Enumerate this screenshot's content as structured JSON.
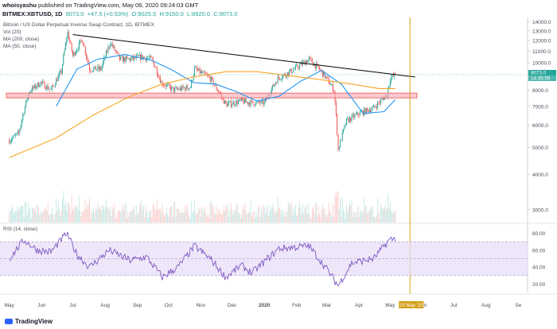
{
  "header": {
    "publisher": "whoisyashu",
    "published": "published on TradingView.com, May 06, 2020 09:24:03 GMT",
    "symbol": "BITMEX:XBTUSD, 1D",
    "last": "9073.0",
    "change": "+47.5 (+0.53%)",
    "open": "O:9025.5",
    "high": "H:9150.0",
    "low": "L:8920.0",
    "close": "C:9073.0"
  },
  "legend": {
    "title": "Bitcoin / US Dollar Perpetual Inverse Swap Contract, 1D, BITMEX",
    "vol": "Vol (20)",
    "ma200": "MA (200, close)",
    "ma50": "MA (50, close)",
    "rsi": "RSI (14, close)"
  },
  "price_labels": {
    "last": "9073.0",
    "countdown": "14:35:59"
  },
  "date_badge": "20 May '20",
  "footer": {
    "brand": "TradingView"
  },
  "colors": {
    "up": "#26a69a",
    "down": "#ef5350",
    "ma50": "#2196f3",
    "ma200": "#f5a623",
    "trendline": "#000000",
    "zone_fill": "#f8b4bd",
    "zone_border": "#ef5350",
    "rsi_line": "#7e57c2",
    "rsi_band": "#e7ddf7",
    "vline": "#d4a017"
  },
  "chart_data": [
    {
      "type": "candlestick",
      "title": "Bitcoin / US Dollar Perpetual Inverse Swap Contract, 1D, BITMEX",
      "x": [
        "May",
        "Jun",
        "Jul",
        "Aug",
        "Sep",
        "Oct",
        "Nov",
        "Dec",
        "2020",
        "Feb",
        "Mar",
        "Apr",
        "May",
        "Jun",
        "Jul",
        "Aug",
        "Se"
      ],
      "price_ticks": [
        3000,
        4000,
        5000,
        6000,
        7000,
        8000,
        9000,
        10000,
        11000,
        12000,
        13000,
        14000
      ],
      "ylim": [
        2700,
        14500
      ],
      "close_path": [
        [
          "2019-05-01",
          5300
        ],
        [
          "2019-05-10",
          5600
        ],
        [
          "2019-05-20",
          7900
        ],
        [
          "2019-05-31",
          8500
        ],
        [
          "2019-06-10",
          8000
        ],
        [
          "2019-06-20",
          9300
        ],
        [
          "2019-06-26",
          12800
        ],
        [
          "2019-07-01",
          10600
        ],
        [
          "2019-07-10",
          12100
        ],
        [
          "2019-07-17",
          9500
        ],
        [
          "2019-07-28",
          9500
        ],
        [
          "2019-08-06",
          11800
        ],
        [
          "2019-08-15",
          10300
        ],
        [
          "2019-08-25",
          10300
        ],
        [
          "2019-09-05",
          10500
        ],
        [
          "2019-09-15",
          10300
        ],
        [
          "2019-09-24",
          8500
        ],
        [
          "2019-10-06",
          8000
        ],
        [
          "2019-10-22",
          8200
        ],
        [
          "2019-10-26",
          9500
        ],
        [
          "2019-11-10",
          8800
        ],
        [
          "2019-11-25",
          7100
        ],
        [
          "2019-12-10",
          7300
        ],
        [
          "2019-12-20",
          7200
        ],
        [
          "2020-01-01",
          7200
        ],
        [
          "2020-01-14",
          8800
        ],
        [
          "2020-01-28",
          9400
        ],
        [
          "2020-02-13",
          10300
        ],
        [
          "2020-02-25",
          9300
        ],
        [
          "2020-03-08",
          8000
        ],
        [
          "2020-03-12",
          4900
        ],
        [
          "2020-03-20",
          6200
        ],
        [
          "2020-04-01",
          6600
        ],
        [
          "2020-04-15",
          6900
        ],
        [
          "2020-04-28",
          7700
        ],
        [
          "2020-05-01",
          8800
        ],
        [
          "2020-05-06",
          9073
        ]
      ],
      "series": [
        {
          "name": "MA (50, close)",
          "values": [
            [
              "2019-06-15",
              7000
            ],
            [
              "2019-07-05",
              9500
            ],
            [
              "2019-07-25",
              10300
            ],
            [
              "2019-08-20",
              10700
            ],
            [
              "2019-09-15",
              10200
            ],
            [
              "2019-10-05",
              9400
            ],
            [
              "2019-10-25",
              8500
            ],
            [
              "2019-11-15",
              8400
            ],
            [
              "2019-12-05",
              7900
            ],
            [
              "2019-12-25",
              7300
            ],
            [
              "2020-01-15",
              7600
            ],
            [
              "2020-02-05",
              8600
            ],
            [
              "2020-02-25",
              9400
            ],
            [
              "2020-03-15",
              8400
            ],
            [
              "2020-04-05",
              6600
            ],
            [
              "2020-04-25",
              6700
            ],
            [
              "2020-05-06",
              7400
            ]
          ]
        },
        {
          "name": "MA (200, close)",
          "values": [
            [
              "2019-05-01",
              4600
            ],
            [
              "2019-06-15",
              5400
            ],
            [
              "2019-07-20",
              6500
            ],
            [
              "2019-08-25",
              7600
            ],
            [
              "2019-09-25",
              8400
            ],
            [
              "2019-10-25",
              8900
            ],
            [
              "2019-11-25",
              9300
            ],
            [
              "2019-12-25",
              9300
            ],
            [
              "2020-01-25",
              9000
            ],
            [
              "2020-02-25",
              8700
            ],
            [
              "2020-03-25",
              8400
            ],
            [
              "2020-04-20",
              8100
            ],
            [
              "2020-05-06",
              8100
            ]
          ]
        }
      ],
      "trendline": [
        [
          "2019-07-01",
          12600
        ],
        [
          "2020-05-25",
          8900
        ]
      ],
      "zone": {
        "from": 7500,
        "to": 7800
      },
      "last_price": 9073.0
    },
    {
      "type": "line",
      "title": "RSI (14, close)",
      "y_ticks": [
        20,
        40,
        60,
        80
      ],
      "ylim": [
        10,
        90
      ],
      "band": [
        30,
        70
      ],
      "values": [
        [
          "2019-05-01",
          50
        ],
        [
          "2019-05-15",
          72
        ],
        [
          "2019-05-28",
          60
        ],
        [
          "2019-06-10",
          58
        ],
        [
          "2019-06-25",
          80
        ],
        [
          "2019-07-05",
          55
        ],
        [
          "2019-07-17",
          40
        ],
        [
          "2019-08-05",
          60
        ],
        [
          "2019-08-25",
          48
        ],
        [
          "2019-09-10",
          52
        ],
        [
          "2019-09-25",
          28
        ],
        [
          "2019-10-10",
          40
        ],
        [
          "2019-10-26",
          65
        ],
        [
          "2019-11-10",
          50
        ],
        [
          "2019-11-25",
          28
        ],
        [
          "2019-12-10",
          42
        ],
        [
          "2019-12-20",
          33
        ],
        [
          "2020-01-15",
          62
        ],
        [
          "2020-02-13",
          65
        ],
        [
          "2020-03-01",
          38
        ],
        [
          "2020-03-12",
          18
        ],
        [
          "2020-03-25",
          45
        ],
        [
          "2020-04-15",
          50
        ],
        [
          "2020-04-30",
          72
        ],
        [
          "2020-05-06",
          74
        ]
      ]
    }
  ]
}
